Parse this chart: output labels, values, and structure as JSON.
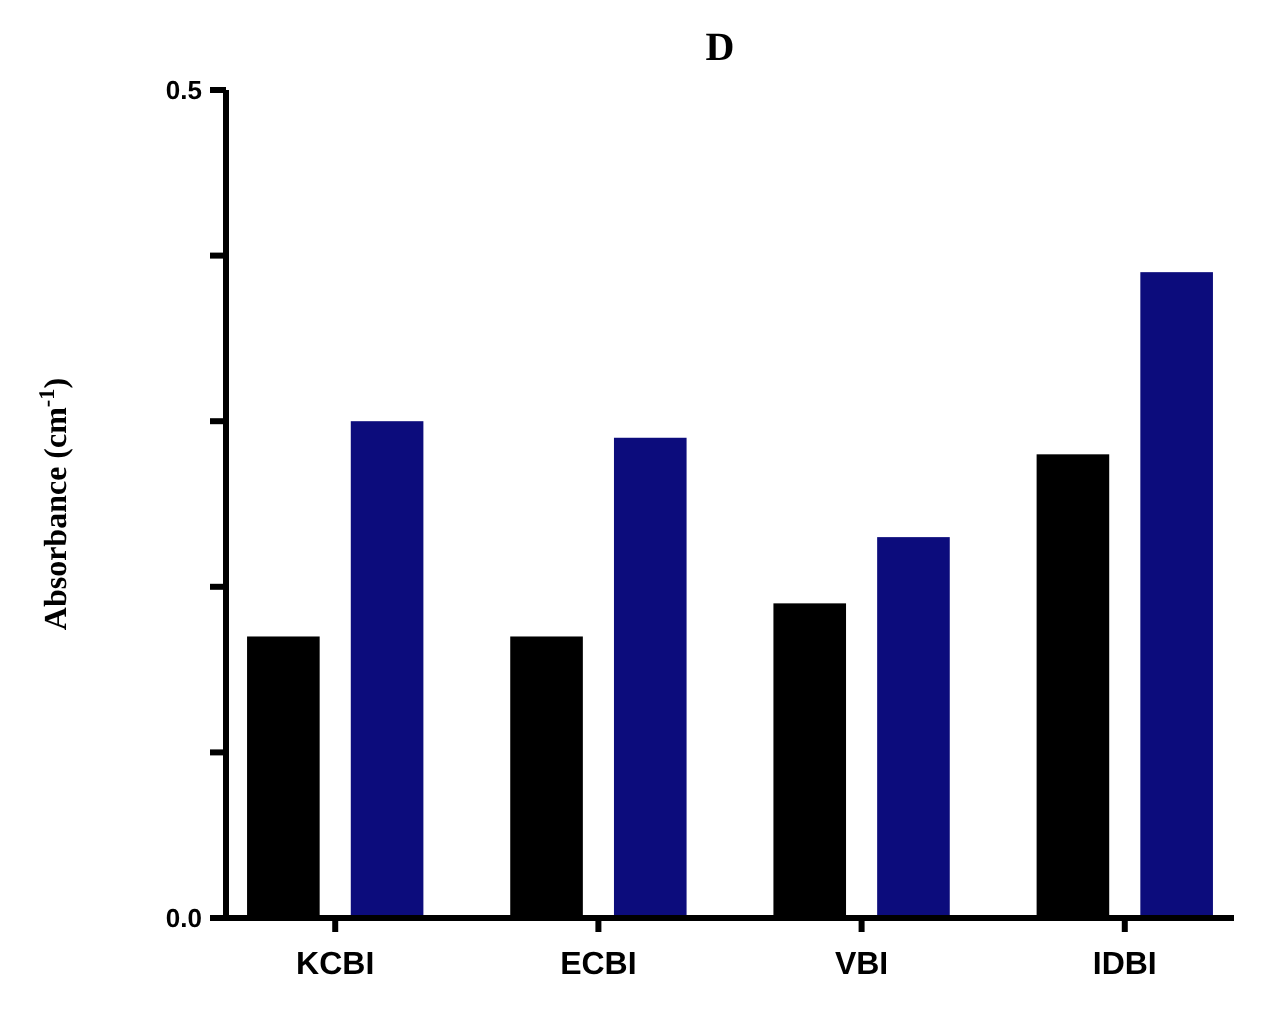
{
  "chart_data": {
    "type": "bar",
    "title": "D",
    "ylabel": "Absorbance (cm$^{-1}$)",
    "categories": [
      "KCBI",
      "ECBI",
      "VBI",
      "IDBI"
    ],
    "series": [
      {
        "color": "#000000",
        "values": [
          0.17,
          0.17,
          0.19,
          0.28
        ]
      },
      {
        "color": "#0c0c7c",
        "values": [
          0.3,
          0.29,
          0.23,
          0.39
        ]
      }
    ],
    "ylim": [
      0,
      0.5
    ],
    "yticks": [
      {
        "value": 0,
        "label": "0.0"
      },
      {
        "value": 0.1,
        "label": null
      },
      {
        "value": 0.2,
        "label": null
      },
      {
        "value": 0.3,
        "label": null
      },
      {
        "value": 0.4,
        "label": null
      },
      {
        "value": 0.5,
        "label": "0.5"
      }
    ],
    "grid": false
  }
}
